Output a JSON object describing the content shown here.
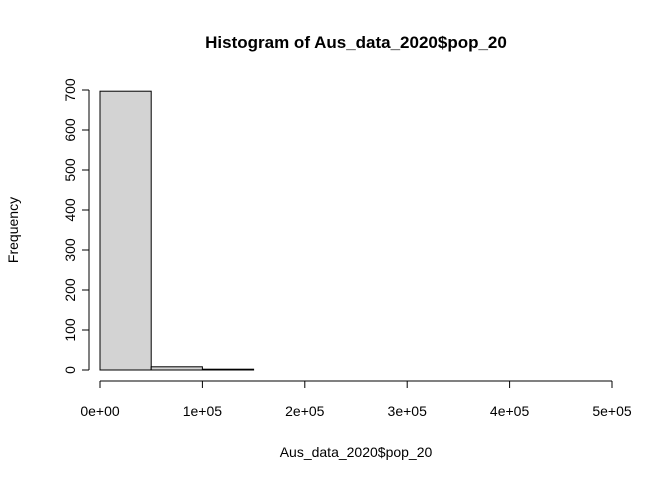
{
  "chart_data": {
    "type": "bar",
    "title": "Histogram of Aus_data_2020$pop_20",
    "xlabel": "Aus_data_2020$pop_20",
    "ylabel": "Frequency",
    "bins": [
      {
        "start": 0,
        "end": 50000,
        "count": 697
      },
      {
        "start": 50000,
        "end": 100000,
        "count": 8
      },
      {
        "start": 100000,
        "end": 150000,
        "count": 2
      },
      {
        "start": 150000,
        "end": 200000,
        "count": 0
      },
      {
        "start": 200000,
        "end": 250000,
        "count": 0
      },
      {
        "start": 250000,
        "end": 300000,
        "count": 0
      },
      {
        "start": 300000,
        "end": 350000,
        "count": 0
      },
      {
        "start": 350000,
        "end": 400000,
        "count": 0
      },
      {
        "start": 400000,
        "end": 450000,
        "count": 0
      },
      {
        "start": 450000,
        "end": 500000,
        "count": 0
      }
    ],
    "xlim": [
      0,
      500000
    ],
    "ylim": [
      0,
      700
    ],
    "x_ticks": [
      {
        "value": 0,
        "label": "0e+00"
      },
      {
        "value": 100000,
        "label": "1e+05"
      },
      {
        "value": 200000,
        "label": "2e+05"
      },
      {
        "value": 300000,
        "label": "3e+05"
      },
      {
        "value": 400000,
        "label": "4e+05"
      },
      {
        "value": 500000,
        "label": "5e+05"
      }
    ],
    "y_ticks": [
      {
        "value": 0,
        "label": "0"
      },
      {
        "value": 100,
        "label": "100"
      },
      {
        "value": 200,
        "label": "200"
      },
      {
        "value": 300,
        "label": "300"
      },
      {
        "value": 400,
        "label": "400"
      },
      {
        "value": 500,
        "label": "500"
      },
      {
        "value": 600,
        "label": "600"
      },
      {
        "value": 700,
        "label": "700"
      }
    ],
    "grid": false,
    "bar_color": "#d3d3d3"
  }
}
